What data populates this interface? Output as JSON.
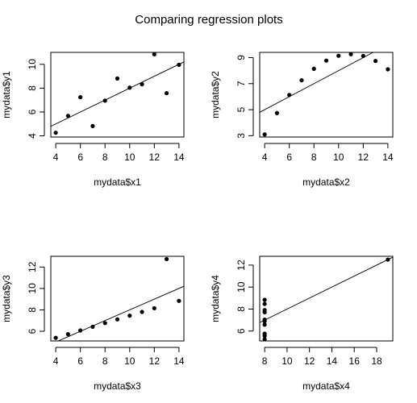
{
  "figure": {
    "title": "Comparing regression plots"
  },
  "chart_data": [
    {
      "type": "scatter",
      "xlabel": "mydata$x1",
      "ylabel": "mydata$y1",
      "xlim": [
        3.6,
        14.4
      ],
      "ylim": [
        3.9,
        11.0
      ],
      "xticks": [
        4,
        6,
        8,
        10,
        12,
        14
      ],
      "yticks": [
        4,
        6,
        8,
        10
      ],
      "points": [
        [
          4,
          4.26
        ],
        [
          5,
          5.68
        ],
        [
          6,
          7.24
        ],
        [
          7,
          4.82
        ],
        [
          8,
          6.95
        ],
        [
          9,
          8.81
        ],
        [
          10,
          8.04
        ],
        [
          11,
          8.33
        ],
        [
          12,
          10.84
        ],
        [
          13,
          7.58
        ],
        [
          14,
          9.96
        ]
      ],
      "fit": {
        "intercept": 3.0,
        "slope": 0.5
      }
    },
    {
      "type": "scatter",
      "xlabel": "mydata$x2",
      "ylabel": "mydata$y2",
      "xlim": [
        3.6,
        14.4
      ],
      "ylim": [
        2.9,
        9.4
      ],
      "xticks": [
        4,
        6,
        8,
        10,
        12,
        14
      ],
      "yticks": [
        3,
        5,
        7,
        9
      ],
      "points": [
        [
          4,
          3.1
        ],
        [
          5,
          4.74
        ],
        [
          6,
          6.13
        ],
        [
          7,
          7.26
        ],
        [
          8,
          8.14
        ],
        [
          9,
          8.77
        ],
        [
          10,
          9.14
        ],
        [
          11,
          9.26
        ],
        [
          12,
          9.13
        ],
        [
          13,
          8.74
        ],
        [
          14,
          8.1
        ]
      ],
      "fit": {
        "intercept": 3.0,
        "slope": 0.5
      }
    },
    {
      "type": "scatter",
      "xlabel": "mydata$x3",
      "ylabel": "mydata$y3",
      "xlim": [
        3.6,
        14.4
      ],
      "ylim": [
        5.1,
        13.0
      ],
      "xticks": [
        4,
        6,
        8,
        10,
        12,
        14
      ],
      "yticks": [
        6,
        8,
        10,
        12
      ],
      "points": [
        [
          4,
          5.39
        ],
        [
          5,
          5.73
        ],
        [
          6,
          6.08
        ],
        [
          7,
          6.42
        ],
        [
          8,
          6.77
        ],
        [
          9,
          7.11
        ],
        [
          10,
          7.46
        ],
        [
          11,
          7.81
        ],
        [
          12,
          8.15
        ],
        [
          13,
          12.74
        ],
        [
          14,
          8.84
        ]
      ],
      "fit": {
        "intercept": 3.0,
        "slope": 0.5
      }
    },
    {
      "type": "scatter",
      "xlabel": "mydata$x4",
      "ylabel": "mydata$y4",
      "xlim": [
        7.56,
        19.44
      ],
      "ylim": [
        5.1,
        12.8
      ],
      "xticks": [
        8,
        10,
        12,
        14,
        16,
        18
      ],
      "yticks": [
        6,
        8,
        10,
        12
      ],
      "points": [
        [
          8,
          6.58
        ],
        [
          8,
          5.76
        ],
        [
          8,
          7.71
        ],
        [
          8,
          8.84
        ],
        [
          8,
          8.47
        ],
        [
          8,
          7.04
        ],
        [
          8,
          5.25
        ],
        [
          19,
          12.5
        ],
        [
          8,
          5.56
        ],
        [
          8,
          7.91
        ],
        [
          8,
          6.89
        ]
      ],
      "fit": {
        "intercept": 3.0,
        "slope": 0.5
      }
    }
  ]
}
